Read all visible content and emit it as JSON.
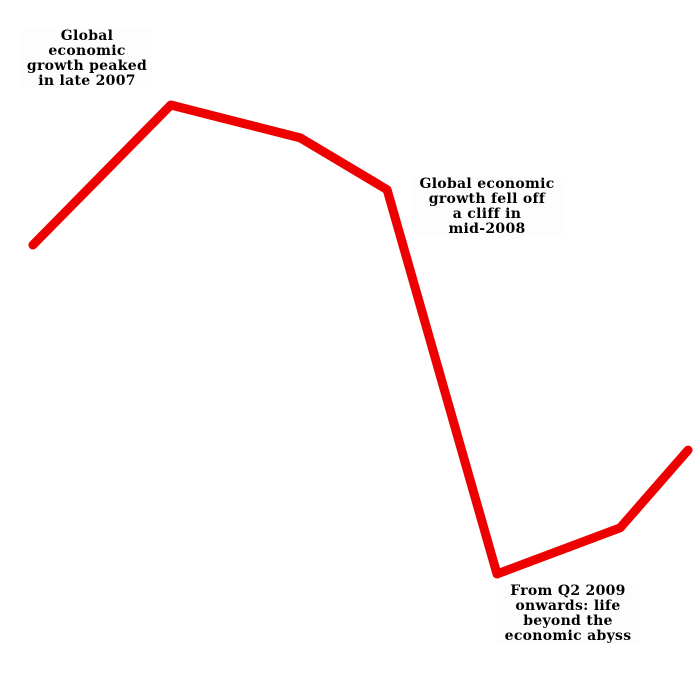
{
  "chart_data": {
    "type": "line",
    "title": "",
    "xlabel": "",
    "ylabel": "",
    "axes_visible": false,
    "grid": false,
    "legend": "none",
    "xlim": [
      0,
      100
    ],
    "ylim": [
      0,
      100
    ],
    "series": [
      {
        "color": "#ee0000",
        "x": [
          4.7,
          24.4,
          42.9,
          55.3,
          71.0,
          88.6,
          98.3
        ],
        "y": [
          65,
          85,
          80.3,
          72.9,
          18,
          24.6,
          35.7
        ]
      }
    ],
    "annotations": [
      {
        "text": "Global\neconomic\ngrowth peaked\nin late 2007"
      },
      {
        "text": "Global economic\ngrowth fell off\na cliff in\nmid-2008"
      },
      {
        "text": "From Q2 2009\nonwards: life\nbeyond the\neconomic abyss"
      }
    ]
  }
}
